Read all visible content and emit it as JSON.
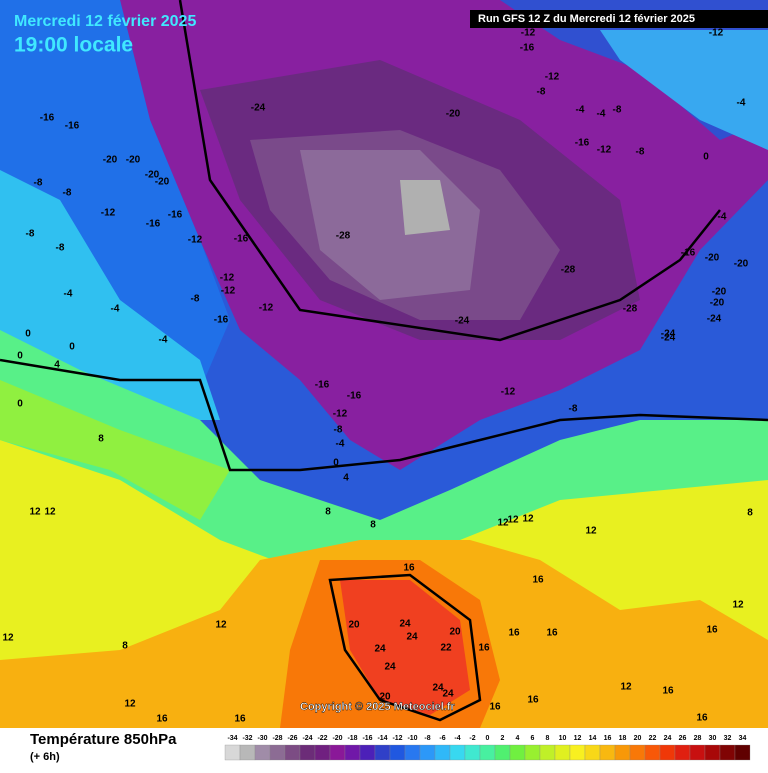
{
  "header": {
    "date": "Mercredi 12 février 2025",
    "time": "19:00 locale",
    "run": "Run GFS 12 Z du Mercredi 12 février 2025"
  },
  "footer": {
    "title": "Température 850hPa",
    "step": "(+ 6h)",
    "copyright": "Copyright © 2025 Meteociel.fr"
  },
  "scale": {
    "labels": [
      -34,
      -32,
      -30,
      -28,
      -26,
      -24,
      -22,
      -20,
      -18,
      -16,
      -14,
      -12,
      -10,
      -8,
      -6,
      -4,
      -2,
      0,
      2,
      4,
      6,
      8,
      10,
      12,
      14,
      16,
      18,
      20,
      22,
      24,
      26,
      28,
      30,
      32,
      34
    ],
    "colors": [
      "#d8d8d8",
      "#b8b8b8",
      "#a08ca8",
      "#8c6c94",
      "#7c4c84",
      "#6c2c78",
      "#702080",
      "#8a1898",
      "#7018a8",
      "#4c20b8",
      "#3040c8",
      "#2058e0",
      "#2878f0",
      "#2c98f8",
      "#30b8f8",
      "#38d8f0",
      "#40e8d0",
      "#48f0a0",
      "#50f070",
      "#70f040",
      "#98f030",
      "#c0f028",
      "#e0f020",
      "#f8f020",
      "#f8d818",
      "#f8b810",
      "#f89808",
      "#f87808",
      "#f85808",
      "#f03808",
      "#e02010",
      "#c81010",
      "#a80808",
      "#800404",
      "#600000"
    ]
  },
  "map_labels": [
    -16,
    -16,
    -20,
    -20,
    -20,
    -20,
    -8,
    -8,
    -12,
    -16,
    -16,
    -12,
    -16,
    -8,
    -8,
    -4,
    -4,
    -4,
    0,
    0,
    0,
    4,
    0,
    8,
    -12,
    -12,
    -8,
    -12,
    -16,
    -24,
    -20,
    -28,
    -28,
    -24,
    -28,
    -24,
    -12,
    -8,
    -12,
    -8,
    -4,
    0,
    4,
    -16,
    -16,
    8,
    8,
    12,
    12,
    12,
    12,
    12,
    12,
    8,
    16,
    16,
    12,
    12,
    8,
    20,
    24,
    24,
    24,
    20,
    22,
    24,
    16,
    16,
    16,
    20,
    24,
    24,
    16,
    16,
    12,
    16,
    16,
    16,
    12,
    16,
    16,
    12,
    -12,
    -16,
    -12,
    -12,
    -8,
    -4,
    -4,
    -8,
    -16,
    -12,
    -8,
    -4,
    -4,
    0,
    -20,
    -20,
    -20,
    -24,
    -24,
    -16,
    -20
  ]
}
